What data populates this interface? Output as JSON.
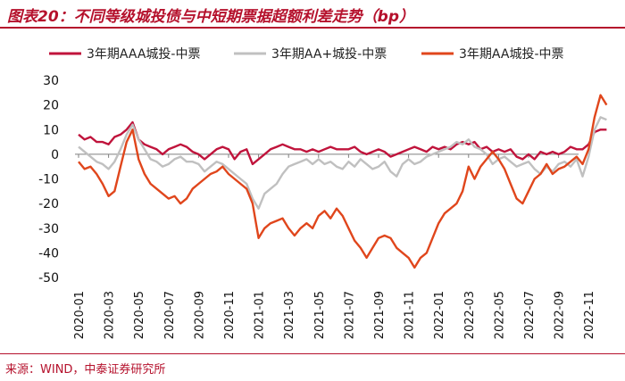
{
  "figure": {
    "title": "图表20：不同等级城投债与中短期票据超额利差走势（bp）",
    "source": "来源：WIND，中泰证券研究所"
  },
  "colors": {
    "accent": "#b5112c",
    "series_aaa": "#c0143c",
    "series_aa_plus": "#c0c0c0",
    "series_aa": "#e0461c"
  },
  "chart_data": {
    "type": "line",
    "title": "",
    "xlabel": "",
    "ylabel": "",
    "ylim": [
      -50,
      30
    ],
    "yticks": [
      30,
      20,
      10,
      0,
      -10,
      -20,
      -30,
      -40,
      -50
    ],
    "x_tick_labels": [
      "2020-01",
      "2020-03",
      "2020-05",
      "2020-07",
      "2020-09",
      "2020-11",
      "2021-01",
      "2021-03",
      "2021-05",
      "2021-07",
      "2021-09",
      "2021-11",
      "2022-01",
      "2022-03",
      "2022-05",
      "2022-07",
      "2022-09",
      "2022-11"
    ],
    "legend_position": "top",
    "series": [
      {
        "name": "3年期AAA城投-中票",
        "color": "#c0143c",
        "points": [
          [
            0,
            8
          ],
          [
            0.2,
            6
          ],
          [
            0.4,
            7
          ],
          [
            0.6,
            5
          ],
          [
            0.8,
            5
          ],
          [
            1.0,
            4
          ],
          [
            1.2,
            7
          ],
          [
            1.4,
            8
          ],
          [
            1.6,
            10
          ],
          [
            1.8,
            13
          ],
          [
            2.0,
            6
          ],
          [
            2.2,
            4
          ],
          [
            2.4,
            3
          ],
          [
            2.6,
            2
          ],
          [
            2.8,
            0
          ],
          [
            3.0,
            2
          ],
          [
            3.2,
            3
          ],
          [
            3.4,
            4
          ],
          [
            3.6,
            3
          ],
          [
            3.8,
            1
          ],
          [
            4.0,
            0
          ],
          [
            4.2,
            -2
          ],
          [
            4.4,
            0
          ],
          [
            4.6,
            2
          ],
          [
            4.8,
            3
          ],
          [
            5.0,
            2
          ],
          [
            5.2,
            -2
          ],
          [
            5.4,
            1
          ],
          [
            5.6,
            2
          ],
          [
            5.8,
            -4
          ],
          [
            6.0,
            -2
          ],
          [
            6.2,
            0
          ],
          [
            6.4,
            2
          ],
          [
            6.6,
            3
          ],
          [
            6.8,
            4
          ],
          [
            7.0,
            3
          ],
          [
            7.2,
            2
          ],
          [
            7.4,
            2
          ],
          [
            7.6,
            1
          ],
          [
            7.8,
            2
          ],
          [
            8.0,
            1
          ],
          [
            8.2,
            2
          ],
          [
            8.4,
            3
          ],
          [
            8.6,
            2
          ],
          [
            8.8,
            2
          ],
          [
            9.0,
            2
          ],
          [
            9.2,
            3
          ],
          [
            9.4,
            1
          ],
          [
            9.6,
            0
          ],
          [
            9.8,
            1
          ],
          [
            10.0,
            2
          ],
          [
            10.2,
            1
          ],
          [
            10.4,
            -1
          ],
          [
            10.6,
            0
          ],
          [
            10.8,
            1
          ],
          [
            11.0,
            2
          ],
          [
            11.2,
            3
          ],
          [
            11.4,
            2
          ],
          [
            11.6,
            1
          ],
          [
            11.8,
            3
          ],
          [
            12.0,
            2
          ],
          [
            12.2,
            3
          ],
          [
            12.4,
            2
          ],
          [
            12.6,
            4
          ],
          [
            12.8,
            5
          ],
          [
            13.0,
            4
          ],
          [
            13.2,
            5
          ],
          [
            13.4,
            2
          ],
          [
            13.6,
            3
          ],
          [
            13.8,
            1
          ],
          [
            14.0,
            2
          ],
          [
            14.2,
            1
          ],
          [
            14.4,
            2
          ],
          [
            14.6,
            -1
          ],
          [
            14.8,
            -2
          ],
          [
            15.0,
            0
          ],
          [
            15.2,
            -2
          ],
          [
            15.4,
            1
          ],
          [
            15.6,
            0
          ],
          [
            15.8,
            1
          ],
          [
            16.0,
            0
          ],
          [
            16.2,
            1
          ],
          [
            16.4,
            3
          ],
          [
            16.6,
            2
          ],
          [
            16.8,
            2
          ],
          [
            17.0,
            4
          ],
          [
            17.2,
            9
          ],
          [
            17.4,
            10
          ],
          [
            17.6,
            10
          ]
        ]
      },
      {
        "name": "3年期AA+城投-中票",
        "color": "#c0c0c0",
        "points": [
          [
            0,
            3
          ],
          [
            0.2,
            1
          ],
          [
            0.4,
            -1
          ],
          [
            0.6,
            -3
          ],
          [
            0.8,
            -4
          ],
          [
            1.0,
            -6
          ],
          [
            1.2,
            -3
          ],
          [
            1.4,
            2
          ],
          [
            1.6,
            8
          ],
          [
            1.8,
            12
          ],
          [
            2.0,
            6
          ],
          [
            2.2,
            2
          ],
          [
            2.4,
            -2
          ],
          [
            2.6,
            -3
          ],
          [
            2.8,
            -5
          ],
          [
            3.0,
            -4
          ],
          [
            3.2,
            -2
          ],
          [
            3.4,
            -1
          ],
          [
            3.6,
            -3
          ],
          [
            3.8,
            -3
          ],
          [
            4.0,
            -4
          ],
          [
            4.2,
            -7
          ],
          [
            4.4,
            -5
          ],
          [
            4.6,
            -3
          ],
          [
            4.8,
            -4
          ],
          [
            5.0,
            -6
          ],
          [
            5.2,
            -8
          ],
          [
            5.4,
            -10
          ],
          [
            5.6,
            -12
          ],
          [
            5.8,
            -18
          ],
          [
            6.0,
            -22
          ],
          [
            6.2,
            -16
          ],
          [
            6.4,
            -14
          ],
          [
            6.6,
            -12
          ],
          [
            6.8,
            -8
          ],
          [
            7.0,
            -5
          ],
          [
            7.2,
            -4
          ],
          [
            7.4,
            -3
          ],
          [
            7.6,
            -2
          ],
          [
            7.8,
            -4
          ],
          [
            8.0,
            -2
          ],
          [
            8.2,
            -4
          ],
          [
            8.4,
            -3
          ],
          [
            8.6,
            -5
          ],
          [
            8.8,
            -6
          ],
          [
            9.0,
            -3
          ],
          [
            9.2,
            -5
          ],
          [
            9.4,
            -2
          ],
          [
            9.6,
            -4
          ],
          [
            9.8,
            -6
          ],
          [
            10.0,
            -5
          ],
          [
            10.2,
            -3
          ],
          [
            10.4,
            -7
          ],
          [
            10.6,
            -9
          ],
          [
            10.8,
            -4
          ],
          [
            11.0,
            -2
          ],
          [
            11.2,
            -4
          ],
          [
            11.4,
            -3
          ],
          [
            11.6,
            -1
          ],
          [
            11.8,
            0
          ],
          [
            12.0,
            1
          ],
          [
            12.2,
            2
          ],
          [
            12.4,
            3
          ],
          [
            12.6,
            5
          ],
          [
            12.8,
            4
          ],
          [
            13.0,
            6
          ],
          [
            13.2,
            3
          ],
          [
            13.4,
            2
          ],
          [
            13.6,
            0
          ],
          [
            13.8,
            -4
          ],
          [
            14.0,
            -2
          ],
          [
            14.2,
            -1
          ],
          [
            14.4,
            -3
          ],
          [
            14.6,
            -5
          ],
          [
            14.8,
            -4
          ],
          [
            15.0,
            -3
          ],
          [
            15.2,
            -6
          ],
          [
            15.4,
            -8
          ],
          [
            15.6,
            -5
          ],
          [
            15.8,
            -7
          ],
          [
            16.0,
            -4
          ],
          [
            16.2,
            -3
          ],
          [
            16.4,
            -5
          ],
          [
            16.6,
            -2
          ],
          [
            16.8,
            -9
          ],
          [
            17.0,
            -1
          ],
          [
            17.2,
            10
          ],
          [
            17.4,
            15
          ],
          [
            17.6,
            14
          ]
        ]
      },
      {
        "name": "3年期AA城投-中票",
        "color": "#e0461c",
        "points": [
          [
            0,
            -3
          ],
          [
            0.2,
            -6
          ],
          [
            0.4,
            -5
          ],
          [
            0.6,
            -8
          ],
          [
            0.8,
            -12
          ],
          [
            1.0,
            -17
          ],
          [
            1.2,
            -15
          ],
          [
            1.4,
            -5
          ],
          [
            1.6,
            5
          ],
          [
            1.8,
            10
          ],
          [
            2.0,
            -2
          ],
          [
            2.2,
            -8
          ],
          [
            2.4,
            -12
          ],
          [
            2.6,
            -14
          ],
          [
            2.8,
            -16
          ],
          [
            3.0,
            -18
          ],
          [
            3.2,
            -17
          ],
          [
            3.4,
            -20
          ],
          [
            3.6,
            -18
          ],
          [
            3.8,
            -14
          ],
          [
            4.0,
            -12
          ],
          [
            4.2,
            -10
          ],
          [
            4.4,
            -8
          ],
          [
            4.6,
            -7
          ],
          [
            4.8,
            -5
          ],
          [
            5.0,
            -8
          ],
          [
            5.2,
            -10
          ],
          [
            5.4,
            -12
          ],
          [
            5.6,
            -14
          ],
          [
            5.8,
            -20
          ],
          [
            6.0,
            -34
          ],
          [
            6.2,
            -30
          ],
          [
            6.4,
            -28
          ],
          [
            6.6,
            -27
          ],
          [
            6.8,
            -26
          ],
          [
            7.0,
            -30
          ],
          [
            7.2,
            -33
          ],
          [
            7.4,
            -30
          ],
          [
            7.6,
            -28
          ],
          [
            7.8,
            -30
          ],
          [
            8.0,
            -25
          ],
          [
            8.2,
            -23
          ],
          [
            8.4,
            -26
          ],
          [
            8.6,
            -22
          ],
          [
            8.8,
            -25
          ],
          [
            9.0,
            -30
          ],
          [
            9.2,
            -35
          ],
          [
            9.4,
            -38
          ],
          [
            9.6,
            -42
          ],
          [
            9.8,
            -38
          ],
          [
            10.0,
            -34
          ],
          [
            10.2,
            -33
          ],
          [
            10.4,
            -34
          ],
          [
            10.6,
            -38
          ],
          [
            10.8,
            -40
          ],
          [
            11.0,
            -42
          ],
          [
            11.2,
            -46
          ],
          [
            11.4,
            -42
          ],
          [
            11.6,
            -40
          ],
          [
            11.8,
            -34
          ],
          [
            12.0,
            -28
          ],
          [
            12.2,
            -24
          ],
          [
            12.4,
            -22
          ],
          [
            12.6,
            -20
          ],
          [
            12.8,
            -15
          ],
          [
            13.0,
            -5
          ],
          [
            13.2,
            -10
          ],
          [
            13.4,
            -5
          ],
          [
            13.6,
            -2
          ],
          [
            13.8,
            1
          ],
          [
            14.0,
            -2
          ],
          [
            14.2,
            -6
          ],
          [
            14.4,
            -12
          ],
          [
            14.6,
            -18
          ],
          [
            14.8,
            -20
          ],
          [
            15.0,
            -15
          ],
          [
            15.2,
            -10
          ],
          [
            15.4,
            -8
          ],
          [
            15.6,
            -4
          ],
          [
            15.8,
            -8
          ],
          [
            16.0,
            -6
          ],
          [
            16.2,
            -5
          ],
          [
            16.4,
            -3
          ],
          [
            16.6,
            -1
          ],
          [
            16.8,
            -4
          ],
          [
            17.0,
            2
          ],
          [
            17.2,
            15
          ],
          [
            17.4,
            24
          ],
          [
            17.6,
            20
          ]
        ]
      }
    ]
  }
}
